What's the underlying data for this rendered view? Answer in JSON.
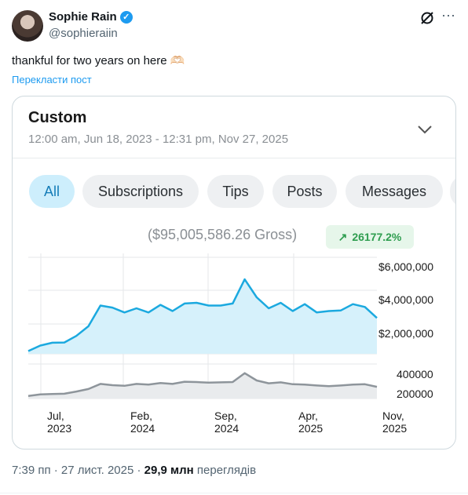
{
  "author": {
    "name": "Sophie Rain",
    "handle": "@sophieraiin"
  },
  "tweet": {
    "text": "thankful for two years on here 🫶🏻",
    "translate_label": "Перекласти пост"
  },
  "card": {
    "title": "Custom",
    "date_range": "12:00 am, Jun 18, 2023 - 12:31 pm, Nov 27, 2025",
    "filters": [
      "All",
      "Subscriptions",
      "Tips",
      "Posts",
      "Messages"
    ],
    "active_filter": "All",
    "gross": "($95,005,586.26 Gross)",
    "change": "26177.2%",
    "accent_color": "#1ba9df"
  },
  "chart_data": [
    {
      "type": "area",
      "y_tick_labels": [
        "$6,000,000",
        "$4,000,000",
        "$2,000,000"
      ],
      "ylim": [
        0,
        7000000
      ],
      "x_tick_labels": [
        [
          "Jul,",
          "2023"
        ],
        [
          "Feb,",
          "2024"
        ],
        [
          "Sep,",
          "2024"
        ],
        [
          "Apr,",
          "2025"
        ],
        [
          "Nov,",
          "2025"
        ]
      ],
      "grid": true,
      "series": [
        {
          "values": [
            200000,
            600000,
            800000,
            820000,
            1300000,
            2000000,
            3500000,
            3350000,
            3000000,
            3300000,
            3000000,
            3550000,
            3100000,
            3650000,
            3700000,
            3500000,
            3500000,
            3650000,
            5400000,
            4100000,
            3300000,
            3700000,
            3100000,
            3600000,
            3000000,
            3100000,
            3150000,
            3600000,
            3400000,
            2600000
          ]
        }
      ]
    },
    {
      "type": "area",
      "y_tick_labels": [
        "400000",
        "200000"
      ],
      "ylim": [
        0,
        520000
      ],
      "series": [
        {
          "values": [
            40000,
            65000,
            70000,
            75000,
            110000,
            150000,
            230000,
            210000,
            200000,
            230000,
            220000,
            245000,
            230000,
            265000,
            260000,
            250000,
            255000,
            260000,
            400000,
            285000,
            240000,
            255000,
            225000,
            220000,
            205000,
            195000,
            205000,
            220000,
            225000,
            185000
          ]
        }
      ]
    }
  ],
  "footer": {
    "time": "7:39 пп · 27 лист. 2025 · ",
    "views": "29,9 млн",
    "views_label": " переглядів"
  }
}
